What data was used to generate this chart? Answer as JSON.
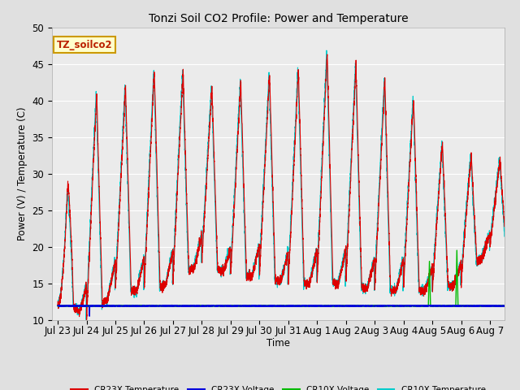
{
  "title": "Tonzi Soil CO2 Profile: Power and Temperature",
  "ylabel": "Power (V) / Temperature (C)",
  "xlabel": "Time",
  "ylim": [
    10,
    50
  ],
  "bg_color": "#e0e0e0",
  "plot_bg": "#ebebeb",
  "annotation_text": "TZ_soilco2",
  "annotation_bg": "#ffffcc",
  "annotation_border": "#cc9900",
  "cr23x_temp_color": "#dd0000",
  "cr23x_volt_color": "#0000dd",
  "cr10x_volt_color": "#00bb00",
  "cr10x_temp_color": "#00cccc",
  "x_tick_labels": [
    "Jul 23",
    "Jul 24",
    "Jul 25",
    "Jul 26",
    "Jul 27",
    "Jul 28",
    "Jul 29",
    "Jul 30",
    "Jul 31",
    "Aug 1",
    "Aug 2",
    "Aug 3",
    "Aug 4",
    "Aug 5",
    "Aug 6",
    "Aug 7"
  ],
  "x_tick_positions": [
    0,
    1,
    2,
    3,
    4,
    5,
    6,
    7,
    8,
    9,
    10,
    11,
    12,
    13,
    14,
    15
  ],
  "base_voltage": 11.9,
  "figsize": [
    6.4,
    4.8
  ],
  "dpi": 100
}
